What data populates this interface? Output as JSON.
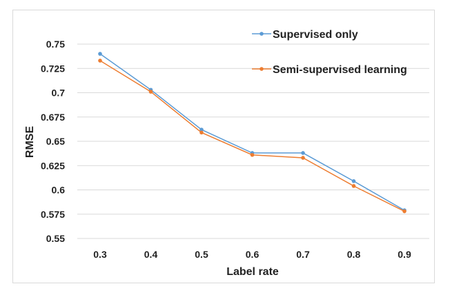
{
  "chart_data": {
    "type": "line",
    "xlabel": "Label rate",
    "ylabel": "RMSE",
    "x": [
      "0.3",
      "0.4",
      "0.5",
      "0.6",
      "0.7",
      "0.8",
      "0.9"
    ],
    "ylim": [
      0.55,
      0.75
    ],
    "yticks": [
      "0.55",
      "0.575",
      "0.6",
      "0.625",
      "0.65",
      "0.675",
      "0.7",
      "0.725",
      "0.75"
    ],
    "grid": true,
    "legend_position": "top-right",
    "series": [
      {
        "name": "Supervised only",
        "color": "#5b9bd5",
        "values": [
          0.74,
          0.703,
          0.662,
          0.638,
          0.638,
          0.609,
          0.579
        ]
      },
      {
        "name": "Semi-supervised learning",
        "color": "#ed7d31",
        "values": [
          0.733,
          0.701,
          0.659,
          0.636,
          0.633,
          0.604,
          0.578
        ]
      }
    ]
  }
}
